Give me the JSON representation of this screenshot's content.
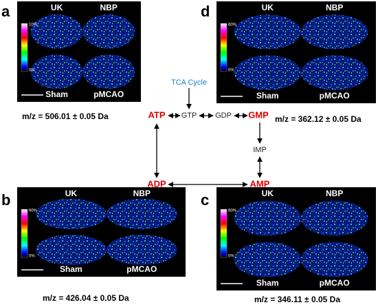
{
  "pathway": {
    "nodes": [
      {
        "label": "TCA Cycle"
      },
      {
        "label": "ATP"
      },
      {
        "label": "GTP"
      },
      {
        "label": "GDP"
      },
      {
        "label": "GMP"
      },
      {
        "label": "IMP"
      },
      {
        "label": "AMP"
      },
      {
        "label": "ADP"
      }
    ]
  },
  "panels": [
    {
      "letter": "a",
      "top_left": "UK",
      "top_right": "NBP",
      "bottom_left": "Sham",
      "bottom_right": "pMCAO",
      "scale_max": "10%",
      "scale_min": "0%",
      "caption": "m/z = 506.01 ± 0.05 Da"
    },
    {
      "letter": "d",
      "top_left": "UK",
      "top_right": "NBP",
      "bottom_left": "Sham",
      "bottom_right": "pMCAO",
      "scale_max": "60%",
      "scale_min": "0%",
      "caption": "m/z = 362.12 ± 0.05 Da"
    },
    {
      "letter": "b",
      "top_left": "UK",
      "top_right": "NBP",
      "bottom_left": "Sham",
      "bottom_right": "pMCAO",
      "scale_max": "60%",
      "scale_min": "0%",
      "caption": "m/z = 426.04 ± 0.05 Da"
    },
    {
      "letter": "c",
      "top_left": "UK",
      "top_right": "NBP",
      "bottom_left": "Sham",
      "bottom_right": "pMCAO",
      "scale_max": "60%",
      "scale_min": "0%",
      "caption": "m/z = 346.11 ± 0.05 Da"
    }
  ]
}
